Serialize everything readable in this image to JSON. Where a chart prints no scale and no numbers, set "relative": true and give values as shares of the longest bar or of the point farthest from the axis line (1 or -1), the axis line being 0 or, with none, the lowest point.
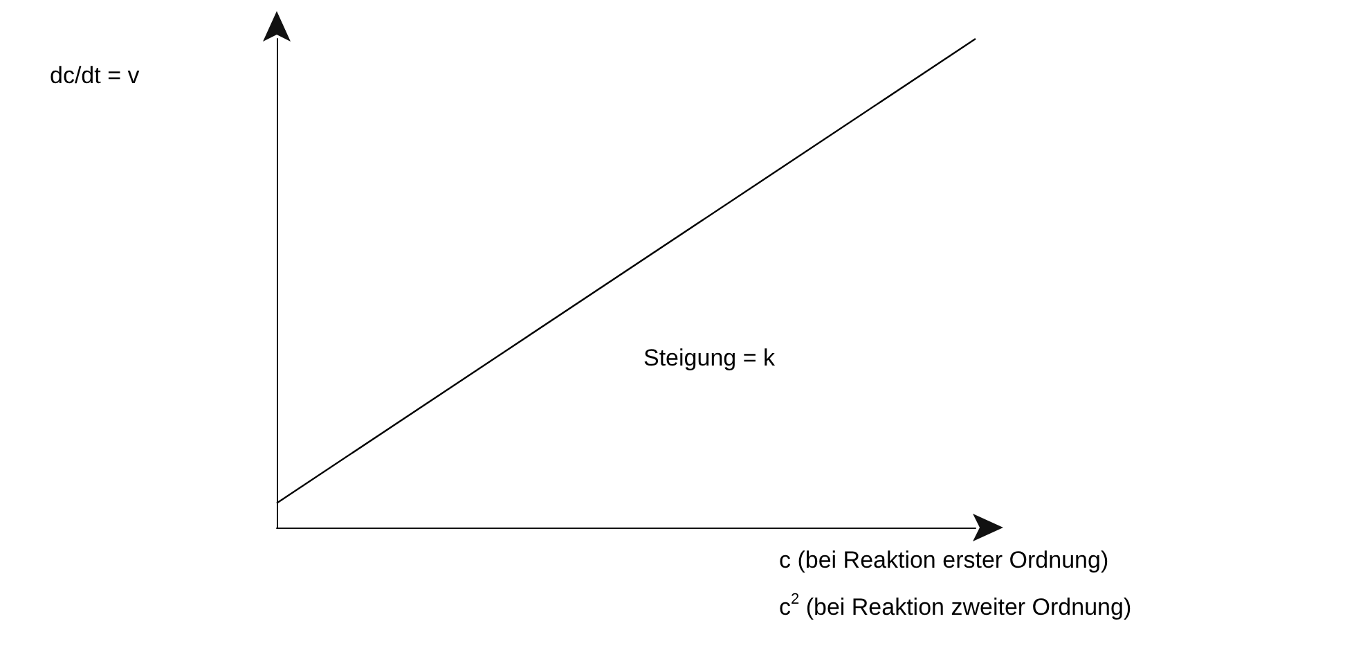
{
  "chart_data": {
    "type": "line",
    "relative": true,
    "categories": [
      null,
      null
    ],
    "series": [
      {
        "color": "#000000",
        "values": [
          0.05,
          1
        ]
      }
    ],
    "ylabel": "dc/dt = v",
    "xlabel": "c (bei Reaktion erster Ordnung)\n\nc$^{2}$ (bei Reaktion zweiter Ordnung)",
    "annotations": [
      "Steigung = k"
    ],
    "marker": "none",
    "grid": false
  }
}
